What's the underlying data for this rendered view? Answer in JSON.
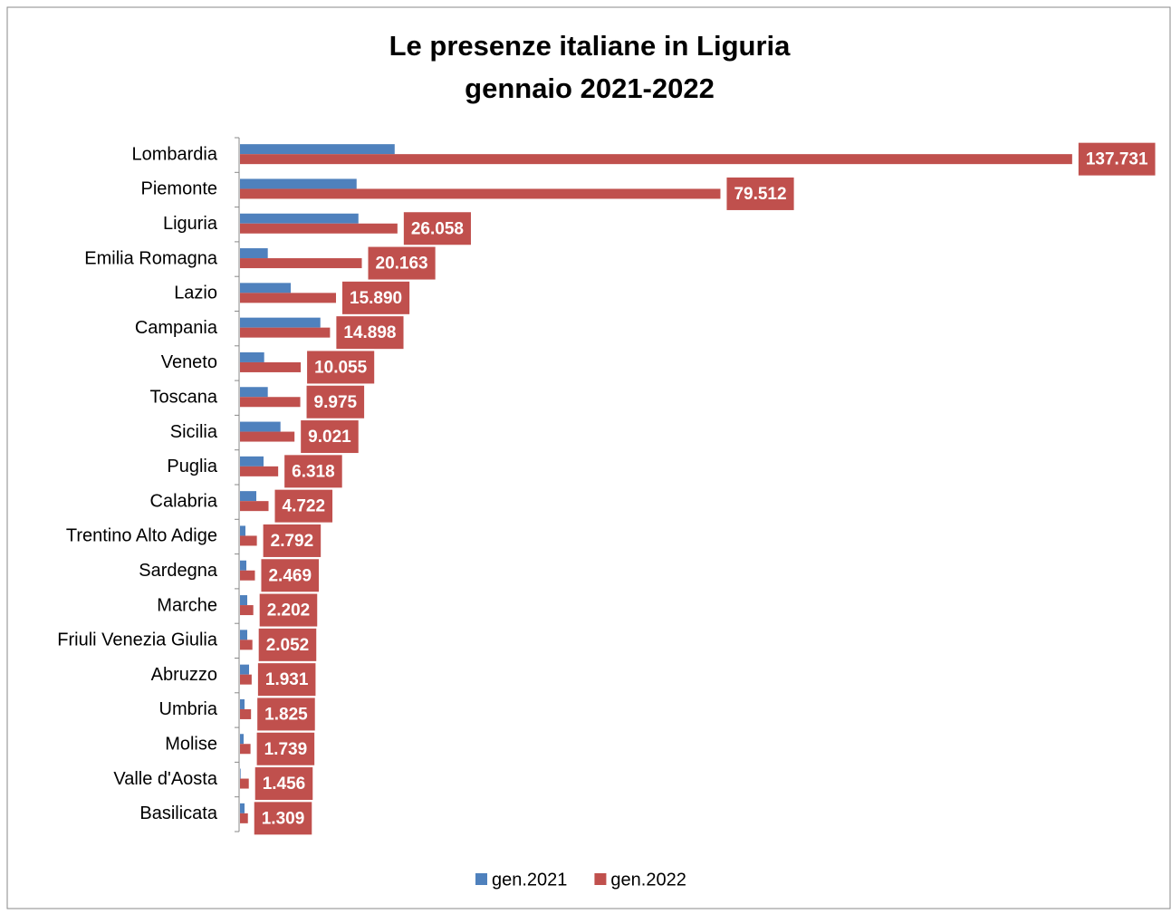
{
  "chart_data": {
    "type": "hbar",
    "title": "Le presenze italiane in Liguria",
    "subtitle": "gennaio 2021-2022",
    "categories": [
      "Lombardia",
      "Piemonte",
      "Liguria",
      "Emilia Romagna",
      "Lazio",
      "Campania",
      "Veneto",
      "Toscana",
      "Sicilia",
      "Puglia",
      "Calabria",
      "Trentino Alto Adige",
      "Sardegna",
      "Marche",
      "Friuli Venezia Giulia",
      "Abruzzo",
      "Umbria",
      "Molise",
      "Valle d'Aosta",
      "Basilicata"
    ],
    "xlim": [
      0,
      140000
    ],
    "legend": "bottom",
    "series": [
      {
        "name": "gen.2021",
        "color": "#4f81bd",
        "values": [
          25600,
          19300,
          19600,
          4600,
          8400,
          13300,
          4000,
          4600,
          6700,
          3900,
          2700,
          900,
          1050,
          1200,
          1200,
          1500,
          750,
          600,
          100,
          750
        ]
      },
      {
        "name": "gen.2022",
        "color": "#c0504d",
        "values": [
          137731,
          79512,
          26058,
          20163,
          15890,
          14898,
          10055,
          9975,
          9021,
          6318,
          4722,
          2792,
          2469,
          2202,
          2052,
          1931,
          1825,
          1739,
          1456,
          1309
        ],
        "value_labels": [
          "137.731",
          "79.512",
          "26.058",
          "20.163",
          "15.890",
          "14.898",
          "10.055",
          "9.975",
          "9.021",
          "6.318",
          "4.722",
          "2.792",
          "2.469",
          "2.202",
          "2.052",
          "1.931",
          "1.825",
          "1.739",
          "1.456",
          "1.309"
        ]
      }
    ]
  }
}
